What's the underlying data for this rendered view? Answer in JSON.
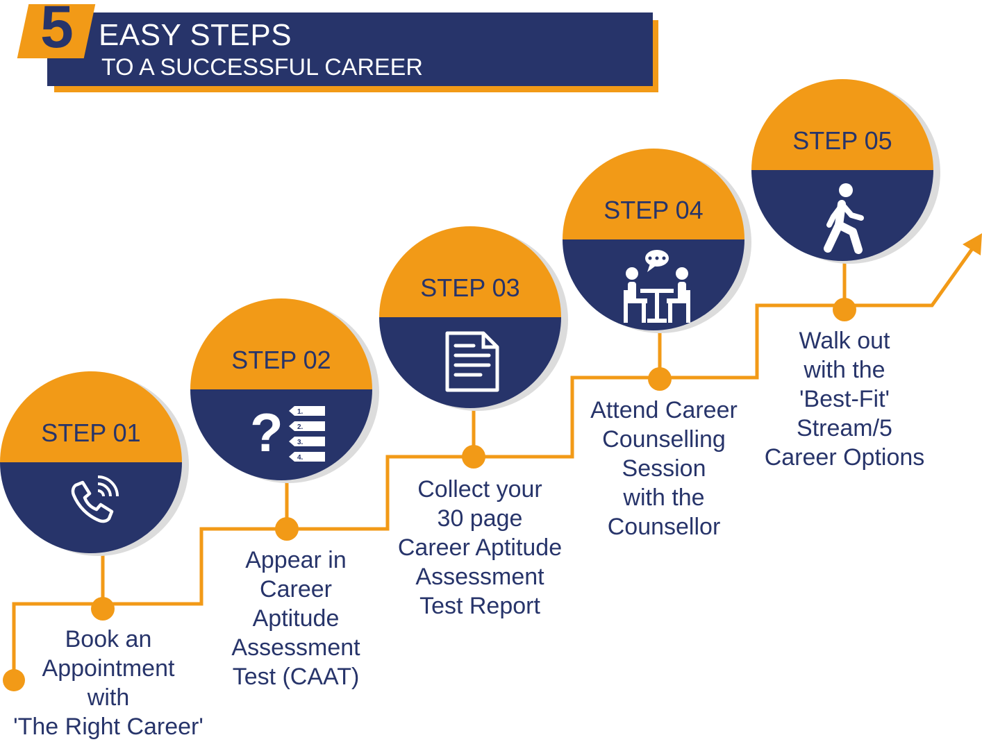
{
  "header": {
    "number": "5",
    "title_line1": "EASY STEPS",
    "title_line2": "TO A SUCCESSFUL CAREER"
  },
  "colors": {
    "orange": "#f29a17",
    "navy": "#27346a",
    "white": "#ffffff"
  },
  "steps": [
    {
      "label": "STEP 01",
      "icon": "phone-icon",
      "description": [
        "Book an",
        "Appointment",
        "with",
        "'The Right Career'"
      ]
    },
    {
      "label": "STEP 02",
      "icon": "questionnaire-icon",
      "list_marks": [
        "1.",
        "2.",
        "3.",
        "4."
      ],
      "description": [
        "Appear in",
        "Career",
        "Aptitude",
        "Assessment",
        "Test (CAAT)"
      ]
    },
    {
      "label": "STEP 03",
      "icon": "document-icon",
      "description": [
        "Collect your",
        "30 page",
        "Career Aptitude",
        "Assessment",
        "Test Report"
      ]
    },
    {
      "label": "STEP 04",
      "icon": "counselling-icon",
      "description": [
        "Attend Career",
        "Counselling",
        "Session",
        "with the",
        "Counsellor"
      ]
    },
    {
      "label": "STEP 05",
      "icon": "walking-person-icon",
      "description": [
        "Walk out",
        "with the",
        "'Best-Fit'",
        "Stream/5",
        "Career Options"
      ]
    }
  ]
}
